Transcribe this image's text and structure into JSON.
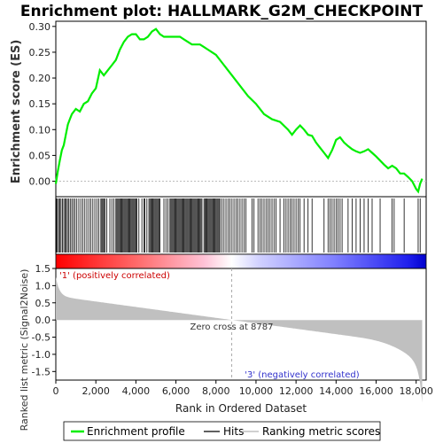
{
  "chart_data": {
    "type": "line",
    "title": "Enrichment plot: HALLMARK_G2M_CHECKPOINT",
    "xlabel": "Rank in Ordered Dataset",
    "ylabel_top": "Enrichment score (ES)",
    "ylabel_bottom": "Ranked list metric (Signal2Noise)",
    "xlim": [
      0,
      18500
    ],
    "es_ylim": [
      -0.03,
      0.31
    ],
    "metric_ylim": [
      -1.75,
      1.5
    ],
    "x_ticks": [
      0,
      2000,
      4000,
      6000,
      8000,
      10000,
      12000,
      14000,
      16000,
      18000
    ],
    "x_tick_labels": [
      "0",
      "2,000",
      "4,000",
      "6,000",
      "8,000",
      "10,000",
      "12,000",
      "14,000",
      "16,000",
      "18,000"
    ],
    "es_ticks": [
      0.0,
      0.05,
      0.1,
      0.15,
      0.2,
      0.25,
      0.3
    ],
    "es_tick_labels": [
      "0.00",
      "0.05",
      "0.10",
      "0.15",
      "0.20",
      "0.25",
      "0.30"
    ],
    "metric_ticks": [
      1.5,
      1.0,
      0.5,
      0.0,
      -0.5,
      -1.0,
      -1.5
    ],
    "metric_tick_labels": [
      "1.5",
      "1.0",
      "0.5",
      "0.0",
      "-0.5",
      "-1.0",
      "-1.5"
    ],
    "series": [
      {
        "name": "Enrichment profile",
        "color": "#00ee00",
        "x": [
          0,
          100,
          200,
          300,
          400,
          500,
          600,
          700,
          800,
          1000,
          1200,
          1400,
          1600,
          1800,
          2000,
          2200,
          2400,
          2600,
          2800,
          3000,
          3200,
          3400,
          3600,
          3800,
          4000,
          4200,
          4400,
          4600,
          4800,
          5000,
          5200,
          5400,
          5600,
          5800,
          6000,
          6200,
          6400,
          6600,
          6800,
          7000,
          7200,
          7400,
          7600,
          7800,
          8000,
          8400,
          8800,
          9200,
          9600,
          10000,
          10400,
          10800,
          11200,
          11600,
          11800,
          12000,
          12200,
          12400,
          12600,
          12800,
          13000,
          13200,
          13400,
          13600,
          13800,
          13900,
          14000,
          14200,
          14400,
          14600,
          14800,
          15000,
          15200,
          15400,
          15600,
          15800,
          16000,
          16200,
          16400,
          16600,
          16800,
          17000,
          17200,
          17400,
          17600,
          17800,
          18000,
          18100,
          18200,
          18300
        ],
        "y": [
          -0.005,
          0.02,
          0.04,
          0.06,
          0.07,
          0.09,
          0.11,
          0.12,
          0.13,
          0.14,
          0.135,
          0.15,
          0.155,
          0.17,
          0.18,
          0.215,
          0.205,
          0.215,
          0.225,
          0.235,
          0.255,
          0.27,
          0.28,
          0.285,
          0.285,
          0.275,
          0.275,
          0.28,
          0.29,
          0.295,
          0.285,
          0.28,
          0.28,
          0.28,
          0.28,
          0.28,
          0.275,
          0.27,
          0.265,
          0.265,
          0.265,
          0.26,
          0.255,
          0.25,
          0.245,
          0.225,
          0.205,
          0.185,
          0.165,
          0.15,
          0.13,
          0.12,
          0.115,
          0.1,
          0.09,
          0.1,
          0.108,
          0.1,
          0.09,
          0.088,
          0.075,
          0.065,
          0.055,
          0.045,
          0.06,
          0.07,
          0.08,
          0.085,
          0.075,
          0.068,
          0.062,
          0.058,
          0.055,
          0.058,
          0.062,
          0.055,
          0.048,
          0.04,
          0.032,
          0.025,
          0.03,
          0.025,
          0.015,
          0.015,
          0.008,
          0.0,
          -0.015,
          -0.02,
          -0.005,
          0.005
        ]
      },
      {
        "name": "Hits",
        "color": "#000000"
      },
      {
        "name": "Ranking metric scores",
        "color": "#c0c0c0"
      }
    ],
    "hits": [
      30,
      80,
      140,
      200,
      260,
      330,
      400,
      470,
      520,
      580,
      650,
      720,
      800,
      880,
      960,
      1050,
      1150,
      1250,
      1350,
      1450,
      1550,
      1650,
      1750,
      1850,
      1950,
      2050,
      2150,
      2250,
      2300,
      2350,
      2400,
      2450,
      2550,
      2700,
      2800,
      2900,
      3000,
      3050,
      3100,
      3150,
      3200,
      3250,
      3300,
      3350,
      3400,
      3450,
      3500,
      3550,
      3600,
      3650,
      3700,
      3750,
      3800,
      3850,
      3900,
      3950,
      4000,
      4050,
      4150,
      4300,
      4400,
      4450,
      4550,
      4650,
      4700,
      4750,
      4800,
      4850,
      4900,
      4950,
      5000,
      5050,
      5100,
      5150,
      5200,
      5400,
      5500,
      5600,
      5700,
      5750,
      5800,
      5850,
      5900,
      5950,
      6000,
      6050,
      6100,
      6150,
      6200,
      6250,
      6300,
      6350,
      6400,
      6450,
      6500,
      6550,
      6600,
      6650,
      6700,
      6750,
      6800,
      6850,
      6900,
      6950,
      7000,
      7050,
      7100,
      7150,
      7200,
      7250,
      7300,
      7400,
      7450,
      7500,
      7550,
      7600,
      7650,
      7700,
      7750,
      7800,
      7850,
      7900,
      7950,
      8000,
      8050,
      8100,
      8150,
      8200,
      8300,
      8400,
      8500,
      8600,
      8700,
      8800,
      8900,
      9000,
      9100,
      9200,
      9300,
      9400,
      9500,
      9800,
      9900,
      10100,
      10200,
      10300,
      10400,
      10500,
      10600,
      10700,
      10800,
      10900,
      11000,
      11200,
      11400,
      11500,
      11600,
      11700,
      11800,
      11900,
      12000,
      12100,
      12200,
      12400,
      12600,
      12800,
      13400,
      13600,
      13700,
      13800,
      13900,
      14000,
      14100,
      14200,
      14300,
      14600,
      14800,
      15000,
      15200,
      15400,
      15600,
      15800,
      16200,
      16800,
      16900,
      17400,
      18100,
      18200
    ],
    "zero_cross": 8787,
    "annotations": {
      "positive": "'1' (positively correlated)",
      "negative": "'3' (negatively correlated)",
      "zero_cross": "Zero cross at 8787"
    },
    "colors": {
      "es_line": "#00ee00",
      "positive": "#ff0000",
      "negative": "#0000ff",
      "metric_fill": "#c0c0c0",
      "positive_text": "#cc0000",
      "negative_text": "#3333cc"
    },
    "legend": {
      "placement": "bottom",
      "items": [
        "Enrichment profile",
        "Hits",
        "Ranking metric scores"
      ]
    }
  }
}
